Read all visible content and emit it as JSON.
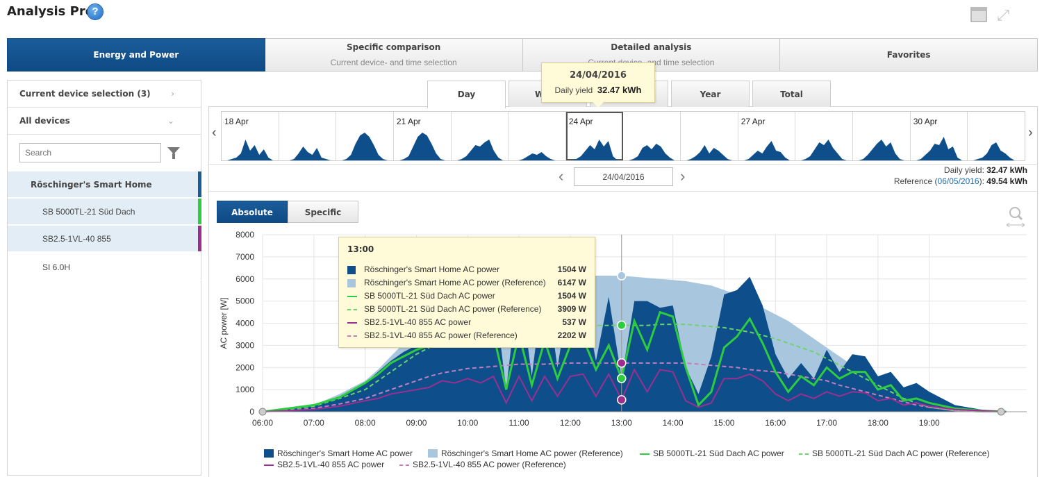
{
  "app": {
    "title": "Analysis Pro",
    "help_glyph": "?"
  },
  "main_tabs": [
    {
      "title": "Energy and Power",
      "subtitle": "",
      "active": true
    },
    {
      "title": "Specific comparison",
      "subtitle": "Current device- and time selection",
      "active": false
    },
    {
      "title": "Detailed analysis",
      "subtitle": "Current device- and time selection",
      "active": false
    },
    {
      "title": "Favorites",
      "subtitle": "",
      "active": false
    }
  ],
  "left_panel": {
    "current_selection": "Current device selection (3)",
    "all_devices": "All devices",
    "search_placeholder": "Search",
    "devices": [
      {
        "name": "Röschinger's Smart Home",
        "color": "#1a5c9a",
        "selected": true,
        "indent": false
      },
      {
        "name": "SB 5000TL-21 Süd Dach",
        "color": "#2ecc40",
        "selected": true,
        "indent": true
      },
      {
        "name": "SB2.5-1VL-40 855",
        "color": "#9b2f91",
        "selected": true,
        "indent": true
      },
      {
        "name": "SI 6.0H",
        "color": "",
        "selected": false,
        "indent": true
      }
    ]
  },
  "period_tabs": [
    {
      "label": "Day",
      "active": true
    },
    {
      "label": "Week",
      "active": false
    },
    {
      "label": "Month",
      "active": false
    },
    {
      "label": "Year",
      "active": false
    },
    {
      "label": "Total",
      "active": false
    }
  ],
  "timeline": {
    "days": [
      {
        "label": "18 Apr"
      },
      {
        "label": ""
      },
      {
        "label": ""
      },
      {
        "label": "21 Apr"
      },
      {
        "label": ""
      },
      {
        "label": ""
      },
      {
        "label": "24 Apr",
        "selected": true
      },
      {
        "label": ""
      },
      {
        "label": ""
      },
      {
        "label": "27 Apr"
      },
      {
        "label": ""
      },
      {
        "label": ""
      },
      {
        "label": "30 Apr"
      },
      {
        "label": ""
      }
    ]
  },
  "tooltip_top": {
    "date": "24/04/2016",
    "yield_label": "Daily yield",
    "yield_value": "32.47 kWh"
  },
  "date_nav": {
    "date": "24/04/2016"
  },
  "yield_info": {
    "daily_label": "Daily yield:",
    "daily_value": "32.47 kWh",
    "ref_label": "Reference (",
    "ref_date": "06/05/2016",
    "ref_suffix": "):",
    "ref_value": "49.54 kWh"
  },
  "toggle": {
    "absolute": "Absolute",
    "specific": "Specific"
  },
  "tooltip_chart": {
    "time": "13:00",
    "rows": [
      {
        "name": "Röschinger's Smart Home AC power",
        "value": "1504 W"
      },
      {
        "name": "Röschinger's Smart Home AC power (Reference)",
        "value": "6147 W"
      },
      {
        "name": "SB 5000TL-21 Süd Dach AC power",
        "value": "1504 W"
      },
      {
        "name": "SB 5000TL-21 Süd Dach AC power (Reference)",
        "value": "3909 W"
      },
      {
        "name": "SB2.5-1VL-40 855 AC power",
        "value": "537 W"
      },
      {
        "name": "SB2.5-1VL-40 855 AC power (Reference)",
        "value": "2202 W"
      }
    ]
  },
  "colors": {
    "home": "#0e4f8b",
    "home_ref": "#a9c6df",
    "sb5000": "#2ecc40",
    "sb5000_ref": "#6bd46b",
    "sb25": "#9b2f91",
    "sb25_ref": "#c37ec0"
  },
  "chart_data": {
    "type": "area",
    "ylabel": "AC power [W]",
    "ylim": [
      0,
      8000
    ],
    "yticks": [
      0,
      1000,
      2000,
      3000,
      4000,
      5000,
      6000,
      7000,
      8000
    ],
    "xticks": [
      "06:00",
      "07:00",
      "08:00",
      "09:00",
      "10:00",
      "11:00",
      "12:00",
      "13:00",
      "14:00",
      "15:00",
      "16:00",
      "17:00",
      "18:00",
      "19:00"
    ],
    "x_hours": [
      6.0,
      6.5,
      7.0,
      7.5,
      8.0,
      8.25,
      8.5,
      8.75,
      9.0,
      9.25,
      9.5,
      9.75,
      10.0,
      10.25,
      10.5,
      10.75,
      11.0,
      11.25,
      11.5,
      11.75,
      12.0,
      12.25,
      12.5,
      12.75,
      13.0,
      13.25,
      13.5,
      13.75,
      14.0,
      14.25,
      14.5,
      14.75,
      15.0,
      15.25,
      15.5,
      15.75,
      16.0,
      16.25,
      16.5,
      16.75,
      17.0,
      17.25,
      17.5,
      17.75,
      18.0,
      18.25,
      18.5,
      18.75,
      19.0,
      19.5,
      20.0,
      20.5
    ],
    "series": [
      {
        "name": "Röschinger's Smart Home AC power",
        "values": [
          0,
          150,
          300,
          700,
          1300,
          1800,
          2300,
          2700,
          3000,
          3400,
          4200,
          3900,
          5200,
          3500,
          5700,
          1000,
          6000,
          1600,
          6200,
          2000,
          5600,
          5400,
          2300,
          5200,
          1504,
          5000,
          5000,
          4700,
          4800,
          2000,
          800,
          2500,
          5300,
          5500,
          6100,
          4800,
          2600,
          1500,
          2200,
          1500,
          2800,
          1800,
          2600,
          2500,
          1600,
          1800,
          1100,
          1300,
          900,
          300,
          100,
          0
        ]
      },
      {
        "name": "Röschinger's Smart Home AC power (Reference)",
        "values": [
          0,
          100,
          300,
          800,
          1400,
          1900,
          2500,
          3100,
          3700,
          4300,
          4800,
          5200,
          5500,
          5800,
          6000,
          6000,
          6100,
          6100,
          6100,
          6100,
          6200,
          6150,
          6150,
          6150,
          6147,
          6100,
          6050,
          6000,
          5950,
          5900,
          5800,
          5700,
          5500,
          5300,
          5000,
          4700,
          4400,
          4100,
          3700,
          3300,
          2900,
          2500,
          2100,
          1700,
          1300,
          1000,
          700,
          500,
          300,
          100,
          0,
          0
        ]
      },
      {
        "name": "SB 5000TL-21 Süd Dach AC power",
        "values": [
          0,
          150,
          300,
          650,
          1300,
          1700,
          2200,
          2500,
          2800,
          3000,
          3300,
          3500,
          3300,
          3500,
          3500,
          1000,
          3500,
          1200,
          3200,
          1500,
          3000,
          3300,
          1900,
          3000,
          1504,
          4100,
          2800,
          4500,
          4300,
          2000,
          300,
          900,
          2900,
          3400,
          4200,
          3100,
          1800,
          900,
          1600,
          1200,
          2000,
          1500,
          1800,
          1800,
          1000,
          1200,
          500,
          600,
          400,
          150,
          50,
          0
        ]
      },
      {
        "name": "SB 5000TL-21 Süd Dach AC power (Reference)",
        "values": [
          0,
          100,
          250,
          600,
          1000,
          1400,
          1800,
          2200,
          2600,
          2900,
          3200,
          3400,
          3600,
          3700,
          3800,
          3800,
          3850,
          3900,
          3900,
          3900,
          3900,
          3900,
          3900,
          3900,
          3909,
          3900,
          3900,
          3950,
          3950,
          3950,
          3900,
          3850,
          3800,
          3700,
          3600,
          3450,
          3300,
          3100,
          2900,
          2700,
          2400,
          2100,
          1800,
          1500,
          1200,
          900,
          600,
          400,
          200,
          50,
          0,
          0
        ]
      },
      {
        "name": "SB2.5-1VL-40 855 AC power",
        "values": [
          0,
          50,
          100,
          250,
          500,
          600,
          800,
          900,
          1000,
          1100,
          1400,
          1300,
          1500,
          1300,
          1600,
          400,
          1600,
          500,
          1600,
          700,
          1600,
          1700,
          700,
          1700,
          537,
          1900,
          900,
          1900,
          1800,
          500,
          200,
          400,
          1500,
          1500,
          1700,
          1400,
          800,
          500,
          800,
          600,
          900,
          700,
          900,
          850,
          500,
          600,
          300,
          400,
          250,
          100,
          50,
          0
        ]
      },
      {
        "name": "SB2.5-1VL-40 855 AC power (Reference)",
        "values": [
          0,
          50,
          150,
          350,
          600,
          800,
          1000,
          1200,
          1400,
          1600,
          1750,
          1850,
          1950,
          2000,
          2050,
          2100,
          2150,
          2150,
          2150,
          2180,
          2200,
          2200,
          2200,
          2200,
          2202,
          2200,
          2200,
          2200,
          2200,
          2200,
          2150,
          2100,
          2050,
          2000,
          1900,
          1850,
          1800,
          1700,
          1600,
          1500,
          1400,
          1200,
          1050,
          900,
          750,
          600,
          450,
          300,
          200,
          50,
          0,
          0
        ]
      }
    ],
    "cursor_hour": 13.0
  }
}
